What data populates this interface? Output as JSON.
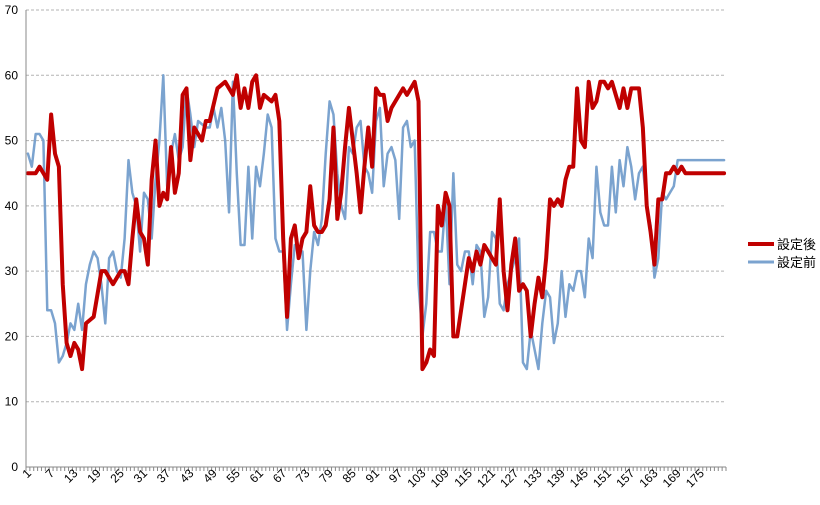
{
  "chart_data": {
    "type": "line",
    "xlabel": "",
    "ylabel": "",
    "ylim": [
      0,
      70
    ],
    "y_ticks": [
      0,
      10,
      20,
      30,
      40,
      50,
      60,
      70
    ],
    "x_count": 181,
    "x_tick_labels": [
      "1",
      "7",
      "13",
      "19",
      "25",
      "31",
      "37",
      "43",
      "49",
      "55",
      "61",
      "67",
      "73",
      "79",
      "85",
      "91",
      "97",
      "103",
      "109",
      "115",
      "121",
      "127",
      "133",
      "139",
      "145",
      "151",
      "157",
      "163",
      "169",
      "175"
    ],
    "grid": "horizontal dashed",
    "legend_position": "right",
    "series": [
      {
        "name": "設定後",
        "color": "#c00000",
        "width": 4,
        "anchors": [
          [
            1,
            45
          ],
          [
            3,
            45
          ],
          [
            4,
            46
          ],
          [
            5,
            45
          ],
          [
            6,
            44
          ],
          [
            7,
            54
          ],
          [
            8,
            48
          ],
          [
            9,
            46
          ],
          [
            10,
            28
          ],
          [
            11,
            19
          ],
          [
            12,
            17
          ],
          [
            13,
            19
          ],
          [
            14,
            18
          ],
          [
            15,
            15
          ],
          [
            16,
            22
          ],
          [
            18,
            23
          ],
          [
            20,
            30
          ],
          [
            21,
            30
          ],
          [
            23,
            28
          ],
          [
            25,
            30
          ],
          [
            26,
            30
          ],
          [
            27,
            28
          ],
          [
            28,
            35
          ],
          [
            29,
            41
          ],
          [
            30,
            36
          ],
          [
            31,
            35
          ],
          [
            32,
            31
          ],
          [
            33,
            44
          ],
          [
            34,
            50
          ],
          [
            35,
            40
          ],
          [
            36,
            42
          ],
          [
            37,
            41
          ],
          [
            38,
            49
          ],
          [
            39,
            42
          ],
          [
            40,
            45
          ],
          [
            41,
            57
          ],
          [
            42,
            58
          ],
          [
            43,
            47
          ],
          [
            44,
            52
          ],
          [
            45,
            51
          ],
          [
            46,
            50
          ],
          [
            47,
            53
          ],
          [
            48,
            53
          ],
          [
            50,
            58
          ],
          [
            52,
            59
          ],
          [
            54,
            57
          ],
          [
            55,
            60
          ],
          [
            56,
            55
          ],
          [
            57,
            58
          ],
          [
            58,
            55
          ],
          [
            59,
            59
          ],
          [
            60,
            60
          ],
          [
            61,
            55
          ],
          [
            62,
            57
          ],
          [
            64,
            56
          ],
          [
            65,
            57
          ],
          [
            66,
            53
          ],
          [
            67,
            35
          ],
          [
            68,
            23
          ],
          [
            69,
            35
          ],
          [
            70,
            37
          ],
          [
            71,
            32
          ],
          [
            72,
            35
          ],
          [
            73,
            36
          ],
          [
            74,
            43
          ],
          [
            75,
            37
          ],
          [
            76,
            36
          ],
          [
            77,
            36
          ],
          [
            78,
            37
          ],
          [
            79,
            41
          ],
          [
            80,
            52
          ],
          [
            81,
            38
          ],
          [
            82,
            42
          ],
          [
            83,
            49
          ],
          [
            84,
            55
          ],
          [
            85,
            50
          ],
          [
            86,
            45
          ],
          [
            87,
            39
          ],
          [
            88,
            46
          ],
          [
            89,
            52
          ],
          [
            90,
            46
          ],
          [
            91,
            58
          ],
          [
            92,
            57
          ],
          [
            93,
            57
          ],
          [
            94,
            53
          ],
          [
            95,
            55
          ],
          [
            97,
            57
          ],
          [
            98,
            58
          ],
          [
            99,
            57
          ],
          [
            100,
            58
          ],
          [
            101,
            59
          ],
          [
            102,
            56
          ],
          [
            103,
            15
          ],
          [
            104,
            16
          ],
          [
            105,
            18
          ],
          [
            106,
            17
          ],
          [
            107,
            40
          ],
          [
            108,
            37
          ],
          [
            109,
            42
          ],
          [
            110,
            40
          ],
          [
            111,
            20
          ],
          [
            112,
            20
          ],
          [
            113,
            24
          ],
          [
            114,
            28
          ],
          [
            115,
            32
          ],
          [
            116,
            30
          ],
          [
            117,
            33
          ],
          [
            118,
            31
          ],
          [
            119,
            34
          ],
          [
            120,
            33
          ],
          [
            121,
            32
          ],
          [
            122,
            31
          ],
          [
            123,
            41
          ],
          [
            124,
            30
          ],
          [
            125,
            24
          ],
          [
            126,
            31
          ],
          [
            127,
            35
          ],
          [
            128,
            27
          ],
          [
            129,
            28
          ],
          [
            130,
            27
          ],
          [
            131,
            20
          ],
          [
            132,
            25
          ],
          [
            133,
            29
          ],
          [
            134,
            26
          ],
          [
            135,
            32
          ],
          [
            136,
            41
          ],
          [
            137,
            40
          ],
          [
            138,
            41
          ],
          [
            139,
            40
          ],
          [
            140,
            44
          ],
          [
            141,
            46
          ],
          [
            142,
            46
          ],
          [
            143,
            58
          ],
          [
            144,
            50
          ],
          [
            145,
            49
          ],
          [
            146,
            59
          ],
          [
            147,
            55
          ],
          [
            148,
            56
          ],
          [
            149,
            59
          ],
          [
            150,
            59
          ],
          [
            151,
            58
          ],
          [
            152,
            59
          ],
          [
            153,
            57
          ],
          [
            154,
            55
          ],
          [
            155,
            58
          ],
          [
            156,
            55
          ],
          [
            157,
            58
          ],
          [
            158,
            58
          ],
          [
            159,
            58
          ],
          [
            160,
            52
          ],
          [
            161,
            40
          ],
          [
            162,
            36
          ],
          [
            163,
            31
          ],
          [
            164,
            41
          ],
          [
            165,
            41
          ],
          [
            166,
            45
          ],
          [
            167,
            45
          ],
          [
            168,
            46
          ],
          [
            169,
            45
          ],
          [
            170,
            46
          ],
          [
            171,
            45
          ],
          [
            181,
            45
          ]
        ]
      },
      {
        "name": "設定前",
        "color": "#7ba3cf",
        "width": 2.5,
        "anchors": [
          [
            1,
            48
          ],
          [
            2,
            46
          ],
          [
            3,
            51
          ],
          [
            4,
            51
          ],
          [
            5,
            50
          ],
          [
            6,
            24
          ],
          [
            7,
            24
          ],
          [
            8,
            22
          ],
          [
            9,
            16
          ],
          [
            10,
            17
          ],
          [
            11,
            19
          ],
          [
            12,
            22
          ],
          [
            13,
            21
          ],
          [
            14,
            25
          ],
          [
            15,
            21
          ],
          [
            16,
            28
          ],
          [
            17,
            31
          ],
          [
            18,
            33
          ],
          [
            19,
            32
          ],
          [
            20,
            28
          ],
          [
            21,
            22
          ],
          [
            22,
            32
          ],
          [
            23,
            33
          ],
          [
            24,
            30
          ],
          [
            25,
            29
          ],
          [
            26,
            35
          ],
          [
            27,
            47
          ],
          [
            28,
            42
          ],
          [
            29,
            40
          ],
          [
            30,
            33
          ],
          [
            31,
            42
          ],
          [
            32,
            41
          ],
          [
            33,
            35
          ],
          [
            34,
            44
          ],
          [
            35,
            50
          ],
          [
            36,
            60
          ],
          [
            37,
            43
          ],
          [
            38,
            48
          ],
          [
            39,
            51
          ],
          [
            40,
            47
          ],
          [
            41,
            49
          ],
          [
            42,
            58
          ],
          [
            43,
            54
          ],
          [
            44,
            49
          ],
          [
            45,
            53
          ],
          [
            47,
            52
          ],
          [
            48,
            52
          ],
          [
            49,
            55
          ],
          [
            50,
            52
          ],
          [
            51,
            55
          ],
          [
            52,
            50
          ],
          [
            53,
            39
          ],
          [
            54,
            59
          ],
          [
            55,
            45
          ],
          [
            56,
            34
          ],
          [
            57,
            34
          ],
          [
            58,
            46
          ],
          [
            59,
            35
          ],
          [
            60,
            46
          ],
          [
            61,
            43
          ],
          [
            62,
            48
          ],
          [
            63,
            54
          ],
          [
            64,
            52
          ],
          [
            65,
            35
          ],
          [
            66,
            33
          ],
          [
            67,
            33
          ],
          [
            68,
            21
          ],
          [
            69,
            28
          ],
          [
            70,
            34
          ],
          [
            71,
            33
          ],
          [
            72,
            33
          ],
          [
            73,
            21
          ],
          [
            74,
            30
          ],
          [
            75,
            36
          ],
          [
            76,
            34
          ],
          [
            77,
            38
          ],
          [
            78,
            48
          ],
          [
            79,
            56
          ],
          [
            80,
            54
          ],
          [
            81,
            45
          ],
          [
            82,
            40
          ],
          [
            83,
            38
          ],
          [
            84,
            49
          ],
          [
            85,
            48
          ],
          [
            86,
            52
          ],
          [
            87,
            53
          ],
          [
            88,
            46
          ],
          [
            89,
            45
          ],
          [
            90,
            42
          ],
          [
            91,
            53
          ],
          [
            92,
            55
          ],
          [
            93,
            43
          ],
          [
            94,
            48
          ],
          [
            95,
            49
          ],
          [
            96,
            47
          ],
          [
            97,
            38
          ],
          [
            98,
            52
          ],
          [
            99,
            53
          ],
          [
            100,
            49
          ],
          [
            101,
            50
          ],
          [
            102,
            28
          ],
          [
            103,
            20
          ],
          [
            104,
            25
          ],
          [
            105,
            36
          ],
          [
            106,
            36
          ],
          [
            107,
            33
          ],
          [
            108,
            33
          ],
          [
            109,
            41
          ],
          [
            110,
            28
          ],
          [
            111,
            45
          ],
          [
            112,
            31
          ],
          [
            113,
            30
          ],
          [
            114,
            33
          ],
          [
            115,
            33
          ],
          [
            116,
            28
          ],
          [
            117,
            34
          ],
          [
            118,
            33
          ],
          [
            119,
            23
          ],
          [
            120,
            26
          ],
          [
            121,
            36
          ],
          [
            122,
            35
          ],
          [
            123,
            25
          ],
          [
            124,
            24
          ],
          [
            125,
            28
          ],
          [
            126,
            30
          ],
          [
            127,
            32
          ],
          [
            128,
            35
          ],
          [
            129,
            16
          ],
          [
            130,
            15
          ],
          [
            131,
            21
          ],
          [
            132,
            18
          ],
          [
            133,
            15
          ],
          [
            134,
            22
          ],
          [
            135,
            27
          ],
          [
            136,
            26
          ],
          [
            137,
            19
          ],
          [
            138,
            22
          ],
          [
            139,
            30
          ],
          [
            140,
            23
          ],
          [
            141,
            28
          ],
          [
            142,
            27
          ],
          [
            143,
            30
          ],
          [
            144,
            30
          ],
          [
            145,
            26
          ],
          [
            146,
            35
          ],
          [
            147,
            32
          ],
          [
            148,
            46
          ],
          [
            149,
            39
          ],
          [
            150,
            37
          ],
          [
            151,
            37
          ],
          [
            152,
            46
          ],
          [
            153,
            39
          ],
          [
            154,
            47
          ],
          [
            155,
            43
          ],
          [
            156,
            49
          ],
          [
            157,
            46
          ],
          [
            158,
            41
          ],
          [
            159,
            45
          ],
          [
            160,
            46
          ],
          [
            161,
            40
          ],
          [
            162,
            37
          ],
          [
            163,
            29
          ],
          [
            164,
            32
          ],
          [
            165,
            42
          ],
          [
            166,
            41
          ],
          [
            167,
            42
          ],
          [
            168,
            43
          ],
          [
            169,
            47
          ],
          [
            181,
            47
          ]
        ]
      }
    ]
  }
}
